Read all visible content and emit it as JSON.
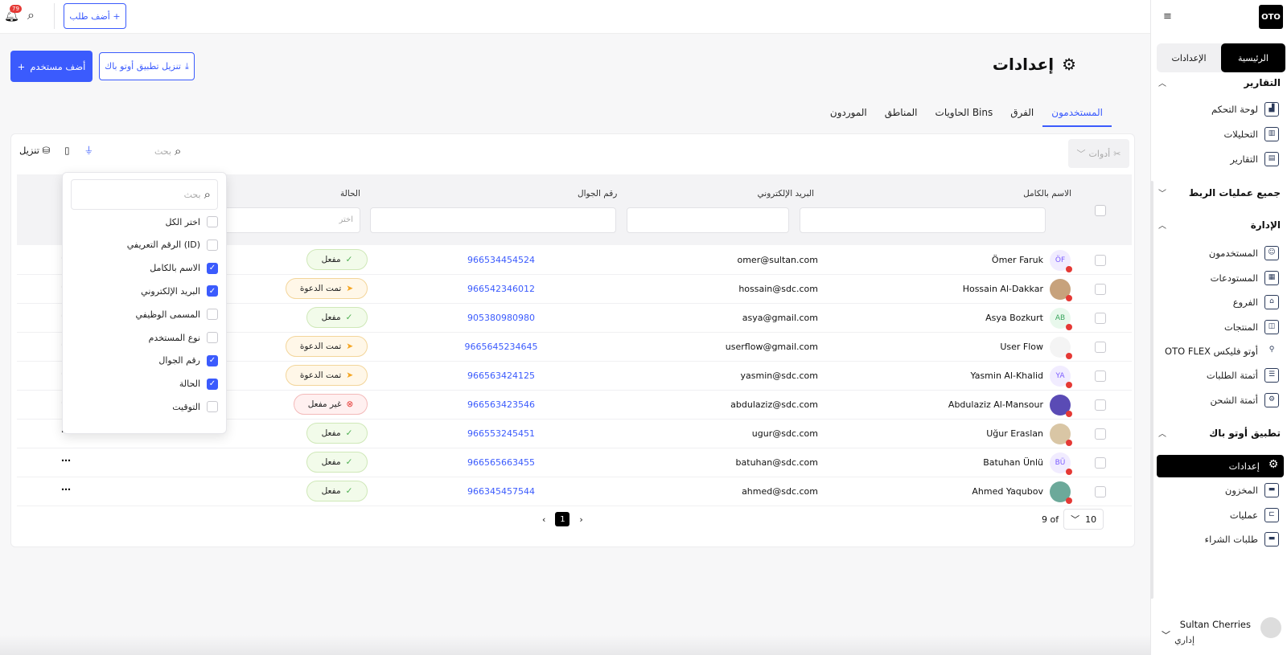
{
  "app": {
    "logo": "OTO"
  },
  "sidebar": {
    "toggle": {
      "home": "الرئيسية",
      "settings": "الإعدادات"
    },
    "sections": {
      "reports": "التقارير",
      "integrations": "جميع عمليات الربط",
      "admin": "الإدارة",
      "app": "تطبيق أوتو باك"
    },
    "report_items": [
      "لوحة التحكم",
      "التحليلات",
      "التقارير"
    ],
    "admin_items": [
      "المستخدمون",
      "المستودعات",
      "الفروع",
      "المنتجات",
      "OTO FLEX أوتو فليكس",
      "أتمتة الطلبات",
      "أتمتة الشحن"
    ],
    "app_items": [
      "إعدادات",
      "المخزون",
      "عمليات",
      "طلبات الشراء"
    ]
  },
  "user": {
    "name": "Sultan Cherries",
    "role": "إداري"
  },
  "topbar": {
    "notification_count": "79",
    "add_order": "أضف طلب"
  },
  "page": {
    "title": "إعدادات",
    "add_user": "أضف مستخدم",
    "download_app": "تنزيل تطبيق أوتو باك"
  },
  "tabs": [
    "المستخدمون",
    "الفرق",
    "الحاويات Bins",
    "المناطق",
    "الموردون"
  ],
  "toolbar": {
    "tools": "أدوات",
    "search_placeholder": "بحث",
    "download": "تنزيل"
  },
  "table": {
    "headers": {
      "name": "الاسم بالكامل",
      "email": "البريد الإلكتروني",
      "phone": "رقم الجوال",
      "status": "الحالة"
    },
    "status_filter_placeholder": "اختر",
    "rows": [
      {
        "name": "Ömer Faruk",
        "initials": "ÖF",
        "email": "omer@sultan.com",
        "phone": "966534454524",
        "status": "مفعل"
      },
      {
        "name": "Hossain Al-Dakkar",
        "initials": "",
        "email": "hossain@sdc.com",
        "phone": "966542346012",
        "status": "تمت الدعوة"
      },
      {
        "name": "Asya Bozkurt",
        "initials": "AB",
        "email": "asya@gmail.com",
        "phone": "905380980980",
        "status": "مفعل"
      },
      {
        "name": "User Flow",
        "initials": "",
        "email": "userflow@gmail.com",
        "phone": "9665645234645",
        "status": "تمت الدعوة"
      },
      {
        "name": "Yasmin Al-Khalid",
        "initials": "YA",
        "email": "yasmin@sdc.com",
        "phone": "966563424125",
        "status": "تمت الدعوة"
      },
      {
        "name": "Abdulaziz Al-Mansour",
        "initials": "",
        "email": "abdulaziz@sdc.com",
        "phone": "966563423546",
        "status": "غير مفعل"
      },
      {
        "name": "Uğur Eraslan",
        "initials": "",
        "email": "ugur@sdc.com",
        "phone": "966553245451",
        "status": "مفعل"
      },
      {
        "name": "Batuhan Ünlü",
        "initials": "BÜ",
        "email": "batuhan@sdc.com",
        "phone": "966565663455",
        "status": "مفعل"
      },
      {
        "name": "Ahmed Yaqubov",
        "initials": "",
        "email": "ahmed@sdc.com",
        "phone": "966345457544",
        "status": "مفعل"
      }
    ]
  },
  "pagination": {
    "page": "1",
    "per_page": "10",
    "total": "9 of"
  },
  "column_menu": {
    "search_placeholder": "بحث",
    "items": [
      {
        "label": "اختر الكل",
        "checked": false
      },
      {
        "label": "الرقم التعريفي (ID)",
        "checked": false
      },
      {
        "label": "الاسم بالكامل",
        "checked": true
      },
      {
        "label": "البريد الإلكتروني",
        "checked": true
      },
      {
        "label": "المسمى الوظيفي",
        "checked": false
      },
      {
        "label": "نوع المستخدم",
        "checked": false
      },
      {
        "label": "رقم الجوال",
        "checked": true
      },
      {
        "label": "الحالة",
        "checked": true
      },
      {
        "label": "التوقيت",
        "checked": false
      }
    ]
  },
  "colors": {
    "accent": "#3b5bfd",
    "active_green": "#4caf50",
    "invite_orange": "#f5a623",
    "inactive_red": "#e53935"
  }
}
